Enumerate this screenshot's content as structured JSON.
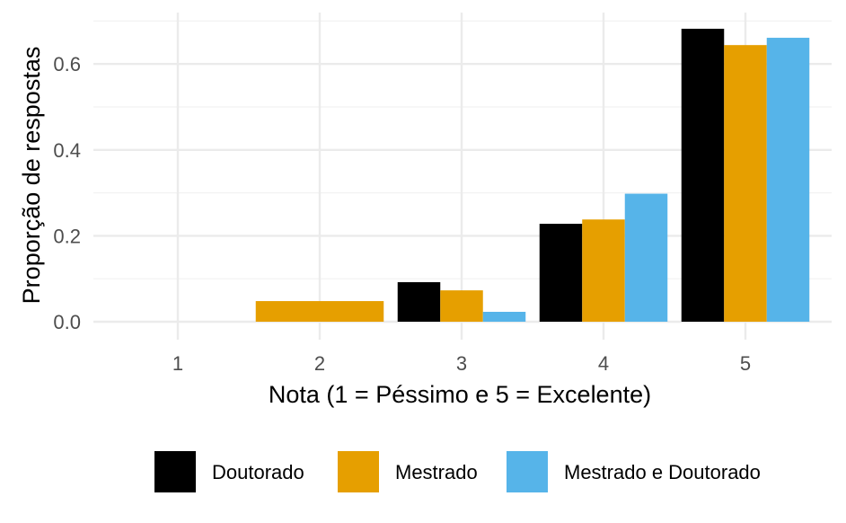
{
  "chart_data": {
    "type": "bar",
    "title": "",
    "xlabel": "Nota (1 = Péssimo e 5 = Excelente)",
    "ylabel": "Proporção de respostas",
    "categories": [
      "1",
      "2",
      "3",
      "4",
      "5"
    ],
    "ylim": [
      0,
      0.7
    ],
    "yticks": [
      {
        "value": 0.0,
        "label": "0.0"
      },
      {
        "value": 0.2,
        "label": "0.2"
      },
      {
        "value": 0.4,
        "label": "0.4"
      },
      {
        "value": 0.6,
        "label": "0.6"
      }
    ],
    "grid": true,
    "legend_position": "bottom",
    "series": [
      {
        "name": "Doutorado",
        "color": "#000000",
        "values": [
          0,
          0,
          0.092,
          0.228,
          0.682
        ]
      },
      {
        "name": "Mestrado",
        "color": "#E69F00",
        "values": [
          0,
          0.048,
          0.073,
          0.238,
          0.644
        ]
      },
      {
        "name": "Mestrado e Doutorado",
        "color": "#56B4E9",
        "values": [
          0,
          0,
          0.023,
          0.298,
          0.661
        ]
      }
    ],
    "merged_bars": [
      {
        "category": "2",
        "value": 0.048,
        "color": "#E69F00"
      }
    ]
  }
}
